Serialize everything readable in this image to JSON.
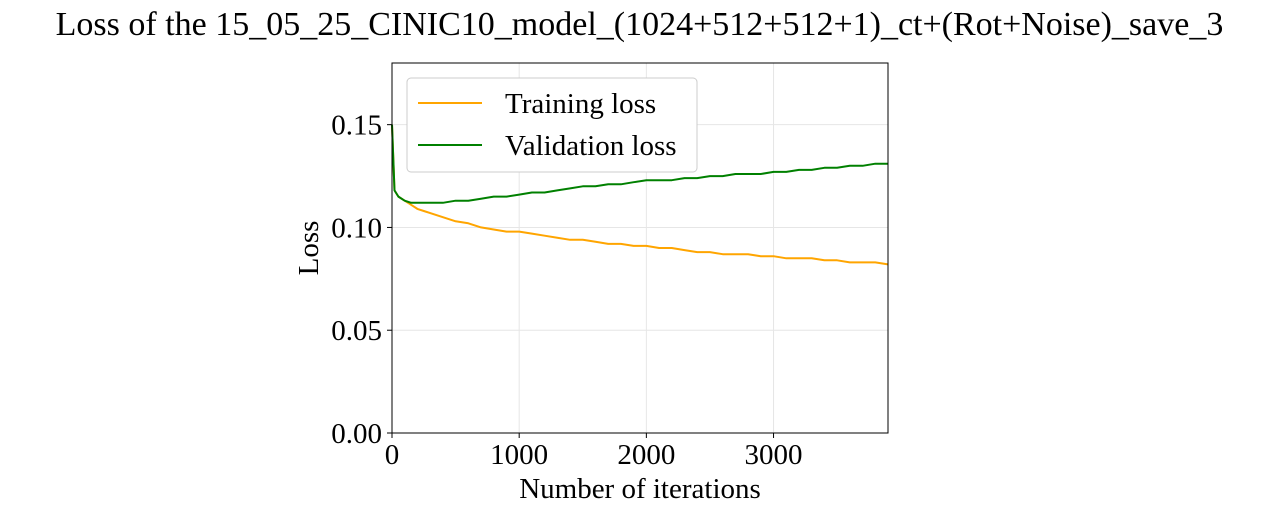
{
  "chart_data": {
    "type": "line",
    "title": "Loss of the 15_05_25_CINIC10_model_(1024+512+512+1)_ct+(Rot+Noise)_save_3",
    "xlabel": "Number of iterations",
    "ylabel": "Loss",
    "xlim": [
      0,
      3900
    ],
    "ylim": [
      0,
      0.18
    ],
    "xticks": [
      0,
      1000,
      2000,
      3000
    ],
    "xtick_labels": [
      "0",
      "1000",
      "2000",
      "3000"
    ],
    "yticks": [
      0,
      0.05,
      0.1,
      0.15
    ],
    "ytick_labels": [
      "0.00",
      "0.05",
      "0.10",
      "0.15"
    ],
    "grid": true,
    "legend_position": "top-left",
    "series": [
      {
        "name": "Training loss",
        "color": "#FFA500",
        "x": [
          0,
          20,
          50,
          100,
          150,
          200,
          250,
          300,
          400,
          500,
          600,
          700,
          800,
          900,
          1000,
          1100,
          1200,
          1300,
          1400,
          1500,
          1600,
          1700,
          1800,
          1900,
          2000,
          2100,
          2200,
          2300,
          2400,
          2500,
          2600,
          2700,
          2800,
          2900,
          3000,
          3100,
          3200,
          3300,
          3400,
          3500,
          3600,
          3700,
          3800,
          3900
        ],
        "y": [
          0.15,
          0.118,
          0.115,
          0.113,
          0.111,
          0.109,
          0.108,
          0.107,
          0.105,
          0.103,
          0.102,
          0.1,
          0.099,
          0.098,
          0.098,
          0.097,
          0.096,
          0.095,
          0.094,
          0.094,
          0.093,
          0.092,
          0.092,
          0.091,
          0.091,
          0.09,
          0.09,
          0.089,
          0.088,
          0.088,
          0.087,
          0.087,
          0.087,
          0.086,
          0.086,
          0.085,
          0.085,
          0.085,
          0.084,
          0.084,
          0.083,
          0.083,
          0.083,
          0.082
        ]
      },
      {
        "name": "Validation loss",
        "color": "#008000",
        "x": [
          0,
          20,
          50,
          100,
          150,
          200,
          250,
          300,
          400,
          500,
          600,
          700,
          800,
          900,
          1000,
          1100,
          1200,
          1300,
          1400,
          1500,
          1600,
          1700,
          1800,
          1900,
          2000,
          2100,
          2200,
          2300,
          2400,
          2500,
          2600,
          2700,
          2800,
          2900,
          3000,
          3100,
          3200,
          3300,
          3400,
          3500,
          3600,
          3700,
          3800,
          3900
        ],
        "y": [
          0.15,
          0.118,
          0.115,
          0.113,
          0.112,
          0.112,
          0.112,
          0.112,
          0.112,
          0.113,
          0.113,
          0.114,
          0.115,
          0.115,
          0.116,
          0.117,
          0.117,
          0.118,
          0.119,
          0.12,
          0.12,
          0.121,
          0.121,
          0.122,
          0.123,
          0.123,
          0.123,
          0.124,
          0.124,
          0.125,
          0.125,
          0.126,
          0.126,
          0.126,
          0.127,
          0.127,
          0.128,
          0.128,
          0.129,
          0.129,
          0.13,
          0.13,
          0.131,
          0.131
        ]
      }
    ]
  }
}
